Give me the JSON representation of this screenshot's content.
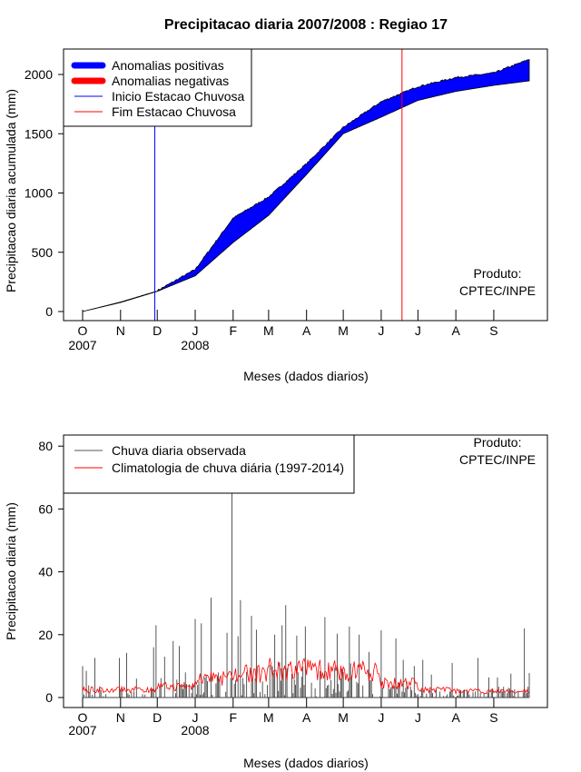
{
  "title": "Precipitacao diaria 2007/2008 : Regiao 17",
  "colors": {
    "positive": "#0000ff",
    "negative": "#ff0000",
    "onset": "#0000ff",
    "end": "#ff0000",
    "obs": "#000000",
    "clim": "#ff0000"
  },
  "chart_data": [
    {
      "type": "area",
      "title": "Precipitacao diaria 2007/2008 : Regiao 17",
      "xlabel": "Meses (dados diarios)",
      "ylabel": "Precipitacao diaria acumulada (mm)",
      "ylim": [
        0,
        2200
      ],
      "yticks": [
        "0",
        "500",
        "1000",
        "1500",
        "2000"
      ],
      "ytick_values": [
        0,
        500,
        1000,
        1500,
        2000
      ],
      "month_labels": [
        "O",
        "N",
        "D",
        "J",
        "F",
        "M",
        "A",
        "M",
        "J",
        "J",
        "A",
        "S"
      ],
      "month_start_days": [
        0,
        31,
        61,
        92,
        123,
        152,
        183,
        213,
        244,
        274,
        305,
        336
      ],
      "year_labels": [
        "2007",
        "2008"
      ],
      "anchor_days": [
        0,
        31,
        61,
        92,
        123,
        152,
        183,
        213,
        244,
        274,
        305,
        336,
        365
      ],
      "observed_cumulative": [
        0,
        80,
        173,
        352,
        786,
        964,
        1245,
        1551,
        1768,
        1895,
        1972,
        2010,
        2125
      ],
      "climatology_cumulative": [
        0,
        76,
        170,
        301,
        582,
        811,
        1156,
        1500,
        1640,
        1781,
        1857,
        1908,
        1946
      ],
      "rainy_season_start_day": 59,
      "rainy_season_end_day": 261,
      "legend": [
        "Anomalias positivas",
        "Anomalias negativas",
        "Inicio Estacao Chuvosa",
        "Fim Estacao Chuvosa"
      ],
      "legend_position": "top-left",
      "credit": [
        "Produto:",
        "CPTEC/INPE"
      ]
    },
    {
      "type": "bar",
      "xlabel": "Meses (dados diarios)",
      "ylabel": "Precipitacao diaria (mm)",
      "ylim": [
        0,
        85
      ],
      "yticks": [
        "0",
        "20",
        "40",
        "60",
        "80"
      ],
      "ytick_values": [
        0,
        20,
        40,
        60,
        80
      ],
      "month_labels": [
        "O",
        "N",
        "D",
        "J",
        "F",
        "M",
        "A",
        "M",
        "J",
        "J",
        "A",
        "S"
      ],
      "month_start_days": [
        0,
        31,
        61,
        92,
        123,
        152,
        183,
        213,
        244,
        274,
        305,
        336
      ],
      "year_labels": [
        "2007",
        "2008"
      ],
      "peak_days": [
        [
          0,
          10
        ],
        [
          3,
          8.5
        ],
        [
          10,
          12.6
        ],
        [
          30,
          12.6
        ],
        [
          36,
          14.2
        ],
        [
          44,
          6
        ],
        [
          58,
          16
        ],
        [
          60,
          23
        ],
        [
          67,
          13
        ],
        [
          74,
          18
        ],
        [
          79,
          16.4
        ],
        [
          84,
          8
        ],
        [
          92,
          25
        ],
        [
          97,
          23.6
        ],
        [
          105,
          31.8
        ],
        [
          118,
          20.6
        ],
        [
          122,
          68
        ],
        [
          127,
          19.5
        ],
        [
          129,
          31
        ],
        [
          138,
          26
        ],
        [
          142,
          21.6
        ],
        [
          157,
          20
        ],
        [
          163,
          23
        ],
        [
          166,
          29.4
        ],
        [
          175,
          19.7
        ],
        [
          182,
          22.6
        ],
        [
          198,
          25.6
        ],
        [
          208,
          20.3
        ],
        [
          218,
          22.6
        ],
        [
          226,
          20
        ],
        [
          234,
          14.5
        ],
        [
          244,
          21.4
        ],
        [
          256,
          18.8
        ],
        [
          262,
          12
        ],
        [
          271,
          10
        ],
        [
          278,
          12
        ],
        [
          285,
          7.3
        ],
        [
          302,
          11
        ],
        [
          323,
          12.6
        ],
        [
          332,
          6.4
        ],
        [
          339,
          6.4
        ],
        [
          350,
          7.6
        ],
        [
          361,
          22
        ],
        [
          365,
          7.8
        ]
      ],
      "monthly_typical_rain": [
        3,
        2,
        5,
        6,
        7,
        8,
        7,
        8,
        4,
        2,
        2,
        2.5
      ],
      "monthly_climatology": [
        2.5,
        2.5,
        3.5,
        6,
        7.5,
        9,
        9,
        8.5,
        4.5,
        2.5,
        2,
        2
      ],
      "legend": [
        "Chuva diaria observada",
        "Climatologia de chuva diária (1997-2014)"
      ],
      "legend_position": "top-left",
      "credit": [
        "Produto:",
        "CPTEC/INPE"
      ]
    }
  ]
}
